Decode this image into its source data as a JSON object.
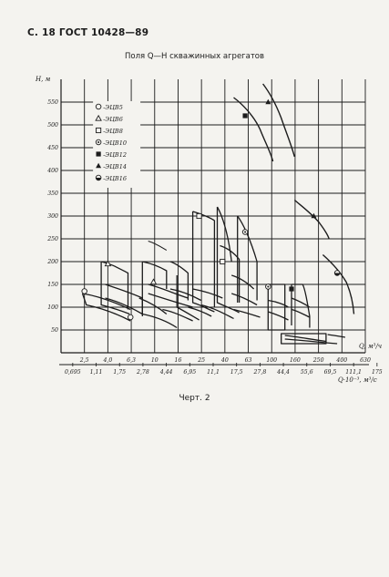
{
  "header": "С. 18 ГОСТ 10428—89",
  "caption": "Черт. 2",
  "chart_data": {
    "type": "line",
    "title": "Поля Q—H скважинных агрегатов",
    "ylabel": "H, м",
    "xlabel": "Q, м³/ч",
    "xlabel2": "Q·10⁻³, м³/с",
    "y_ticks": [
      "50",
      "100",
      "150",
      "200",
      "250",
      "300",
      "350",
      "400",
      "450",
      "500",
      "550"
    ],
    "x_ticks_top": [
      "2,5",
      "4,0",
      "6,3",
      "10",
      "16",
      "25",
      "40",
      "63",
      "100",
      "160",
      "250",
      "400",
      "630"
    ],
    "x_ticks_bottom": [
      "0,695",
      "1,11",
      "1,75",
      "2,78",
      "4,44",
      "6,95",
      "11,1",
      "17,5",
      "27,8",
      "44,4",
      "55,6",
      "69,5",
      "111,1",
      "175"
    ],
    "ylim": [
      0,
      580
    ],
    "legend": [
      {
        "label": "-ЭЦВ5",
        "marker": "circle-open"
      },
      {
        "label": "-ЭЦВ6",
        "marker": "triangle-open"
      },
      {
        "label": "-ЭЦВ8",
        "marker": "square-open"
      },
      {
        "label": "-ЭЦВ10",
        "marker": "circle-dot"
      },
      {
        "label": "-ЭЦВ12",
        "marker": "square-filled"
      },
      {
        "label": "-ЭЦВ14",
        "marker": "triangle-filled"
      },
      {
        "label": "-ЭЦВ16",
        "marker": "circle-half"
      }
    ],
    "series": [
      {
        "name": "ЭЦВ5",
        "marker": "circle-open",
        "points": [
          [
            2.5,
            135
          ],
          [
            6.3,
            78
          ]
        ]
      },
      {
        "name": "ЭЦВ6",
        "marker": "triangle-open",
        "points": [
          [
            4.0,
            195
          ],
          [
            10,
            155
          ]
        ]
      },
      {
        "name": "ЭЦВ8",
        "marker": "square-open",
        "points": [
          [
            25,
            300
          ],
          [
            40,
            200
          ]
        ]
      },
      {
        "name": "ЭЦВ10",
        "marker": "circle-dot",
        "points": [
          [
            63,
            265
          ],
          [
            100,
            145
          ]
        ]
      },
      {
        "name": "ЭЦВ12",
        "marker": "square-filled",
        "points": [
          [
            63,
            520
          ],
          [
            160,
            140
          ]
        ]
      },
      {
        "name": "ЭЦВ14",
        "marker": "triangle-filled",
        "points": [
          [
            100,
            550
          ],
          [
            250,
            300
          ]
        ]
      },
      {
        "name": "ЭЦВ16",
        "marker": "circle-half",
        "points": [
          [
            400,
            175
          ]
        ]
      }
    ]
  }
}
